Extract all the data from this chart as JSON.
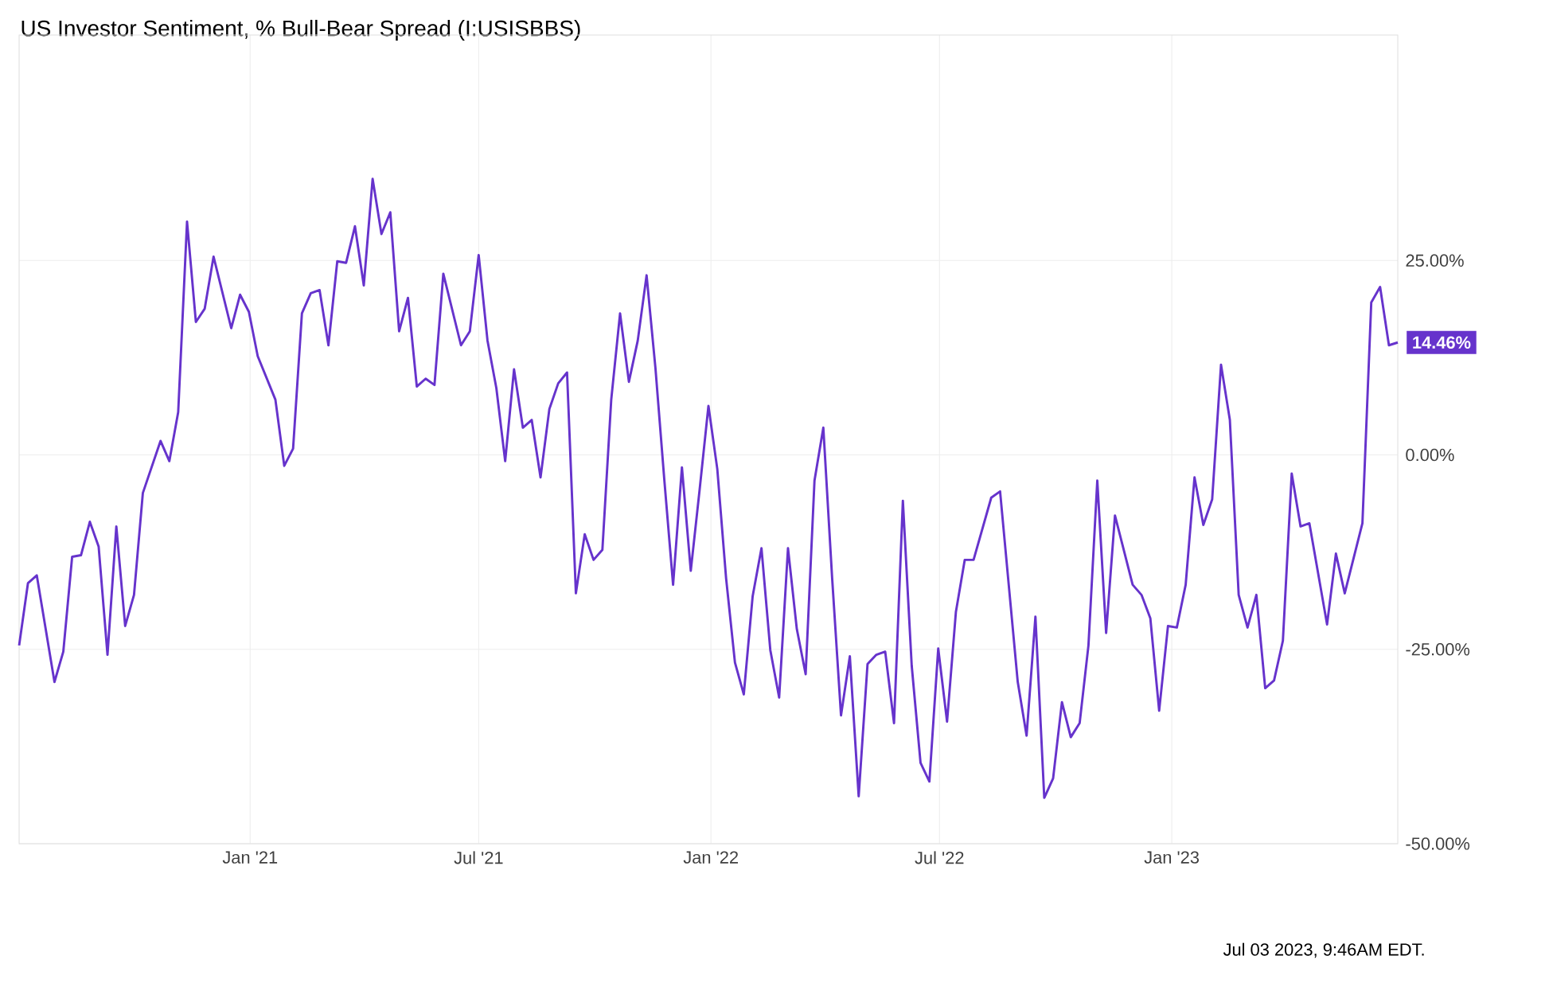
{
  "chart_data": {
    "type": "line",
    "title": "US Investor Sentiment, % Bull-Bear Spread (I:USISBBS)",
    "x": [
      "2020-07-02",
      "2020-07-09",
      "2020-07-16",
      "2020-07-30",
      "2020-08-06",
      "2020-08-13",
      "2020-08-20",
      "2020-08-27",
      "2020-09-03",
      "2020-09-10",
      "2020-09-17",
      "2020-09-24",
      "2020-10-01",
      "2020-10-08",
      "2020-10-22",
      "2020-10-29",
      "2020-11-05",
      "2020-11-12",
      "2020-11-19",
      "2020-11-26",
      "2020-12-03",
      "2020-12-17",
      "2020-12-24",
      "2020-12-31",
      "2021-01-07",
      "2021-01-21",
      "2021-01-28",
      "2021-02-04",
      "2021-02-11",
      "2021-02-18",
      "2021-02-25",
      "2021-03-04",
      "2021-03-11",
      "2021-03-18",
      "2021-03-25",
      "2021-04-01",
      "2021-04-08",
      "2021-04-15",
      "2021-04-22",
      "2021-04-29",
      "2021-05-06",
      "2021-05-13",
      "2021-05-20",
      "2021-05-27",
      "2021-06-03",
      "2021-06-17",
      "2021-06-24",
      "2021-07-01",
      "2021-07-08",
      "2021-07-15",
      "2021-07-22",
      "2021-07-29",
      "2021-08-05",
      "2021-08-12",
      "2021-08-19",
      "2021-08-26",
      "2021-09-02",
      "2021-09-09",
      "2021-09-16",
      "2021-09-23",
      "2021-09-30",
      "2021-10-07",
      "2021-10-14",
      "2021-10-21",
      "2021-10-28",
      "2021-11-04",
      "2021-11-11",
      "2021-11-18",
      "2021-11-25",
      "2021-12-02",
      "2021-12-09",
      "2021-12-16",
      "2021-12-23",
      "2021-12-30",
      "2022-01-06",
      "2022-01-13",
      "2022-01-20",
      "2022-01-27",
      "2022-02-03",
      "2022-02-10",
      "2022-02-17",
      "2022-02-24",
      "2022-03-03",
      "2022-03-10",
      "2022-03-17",
      "2022-03-24",
      "2022-03-31",
      "2022-04-07",
      "2022-04-14",
      "2022-04-21",
      "2022-04-28",
      "2022-05-05",
      "2022-05-12",
      "2022-05-19",
      "2022-05-26",
      "2022-06-02",
      "2022-06-09",
      "2022-06-16",
      "2022-06-23",
      "2022-06-30",
      "2022-07-07",
      "2022-07-14",
      "2022-07-21",
      "2022-07-28",
      "2022-08-11",
      "2022-08-18",
      "2022-09-01",
      "2022-09-08",
      "2022-09-15",
      "2022-09-22",
      "2022-09-29",
      "2022-10-06",
      "2022-10-13",
      "2022-10-20",
      "2022-10-27",
      "2022-11-03",
      "2022-11-10",
      "2022-11-17",
      "2022-12-01",
      "2022-12-08",
      "2022-12-15",
      "2022-12-22",
      "2022-12-29",
      "2023-01-05",
      "2023-01-12",
      "2023-01-19",
      "2023-01-26",
      "2023-02-02",
      "2023-02-09",
      "2023-02-16",
      "2023-02-23",
      "2023-03-02",
      "2023-03-09",
      "2023-03-16",
      "2023-03-23",
      "2023-03-30",
      "2023-04-06",
      "2023-04-13",
      "2023-04-20",
      "2023-05-04",
      "2023-05-11",
      "2023-05-18",
      "2023-06-01",
      "2023-06-08",
      "2023-06-15",
      "2023-06-22",
      "2023-06-29"
    ],
    "series": [
      {
        "color": "#6633cc",
        "values": [
          -24.5,
          -16.5,
          -15.5,
          -29.2,
          -25.3,
          -13.1,
          -12.9,
          -8.6,
          -11.8,
          -25.7,
          -9.2,
          -22,
          -18,
          -4.9,
          1.8,
          -0.8,
          5.5,
          30,
          17.1,
          18.8,
          25.5,
          16.3,
          20.6,
          18.4,
          12.7,
          7.1,
          -1.4,
          0.8,
          18.2,
          20.8,
          21.2,
          14.1,
          24.9,
          24.7,
          29.4,
          21.8,
          35.5,
          28.4,
          31.2,
          15.9,
          20.2,
          8.8,
          9.8,
          9,
          23.3,
          14.1,
          15.9,
          25.7,
          14.7,
          8.6,
          -0.8,
          11,
          3.5,
          4.5,
          -2.9,
          5.9,
          9.2,
          10.6,
          -17.8,
          -10.2,
          -13.5,
          -12.2,
          7.1,
          18.2,
          9.4,
          14.7,
          23.1,
          11.2,
          -3.1,
          -16.7,
          -1.6,
          -14.9,
          -4.5,
          6.3,
          -1.8,
          -15.9,
          -26.7,
          -30.8,
          -18.2,
          -12,
          -25.1,
          -31.2,
          -12,
          -22.4,
          -28.2,
          -3.3,
          3.5,
          -15.9,
          -33.5,
          -25.9,
          -43.9,
          -26.9,
          -25.7,
          -25.3,
          -34.5,
          -5.9,
          -27.1,
          -39.6,
          -42,
          -24.9,
          -34.3,
          -20.2,
          -13.5,
          -13.5,
          -5.5,
          -4.7,
          -29.2,
          -36.1,
          -20.8,
          -44.1,
          -41.6,
          -31.8,
          -36.3,
          -34.5,
          -24.5,
          -3.3,
          -22.9,
          -7.8,
          -16.7,
          -18,
          -21,
          -32.9,
          -22,
          -22.2,
          -16.7,
          -2.9,
          -9,
          -5.7,
          11.6,
          4.5,
          -18,
          -22.2,
          -18,
          -30,
          -29,
          -23.9,
          -2.4,
          -9.2,
          -8.8,
          -21.8,
          -12.7,
          -17.8,
          -8.8,
          19.6,
          21.6,
          14.1,
          14.46
        ]
      }
    ],
    "xlim": [
      "2020-07-02",
      "2023-06-29"
    ],
    "xticks": [
      {
        "value": "2021-01-01",
        "label": "Jan '21"
      },
      {
        "value": "2021-07-01",
        "label": "Jul '21"
      },
      {
        "value": "2022-01-01",
        "label": "Jan '22"
      },
      {
        "value": "2022-07-01",
        "label": "Jul '22"
      },
      {
        "value": "2023-01-01",
        "label": "Jan '23"
      }
    ],
    "ylim": [
      -50,
      54
    ],
    "yticks": [
      {
        "value": -50,
        "label": "-50.00%"
      },
      {
        "value": -25,
        "label": "-25.00%"
      },
      {
        "value": 0,
        "label": "0.00%"
      },
      {
        "value": 25,
        "label": "25.00%"
      }
    ],
    "grid": true,
    "annotations": [
      {
        "text": "14.46%",
        "x": "2023-06-29",
        "y": 14.46
      },
      "Jul 03 2023, 9:46AM EDT."
    ]
  }
}
